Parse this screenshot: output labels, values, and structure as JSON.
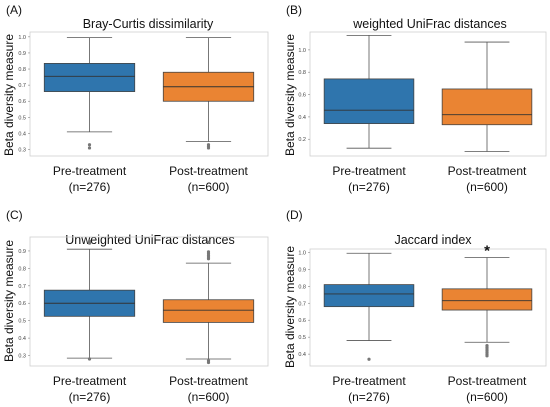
{
  "colors": {
    "pre": "#2f75ad",
    "post": "#ea8433"
  },
  "chart_data": [
    {
      "type": "boxplot",
      "panel": "(A)",
      "title": "Bray-Curtis dissimilarity",
      "ylabel": "Beta diversity measure",
      "xlabel": "",
      "ylim": [
        0.26,
        1.03
      ],
      "yticks": [
        "0.3",
        "0.4",
        "0.5",
        "0.6",
        "0.7",
        "0.8",
        "0.9",
        "1.0"
      ],
      "ytick_values": [
        0.3,
        0.4,
        0.5,
        0.6,
        0.7,
        0.8,
        0.9,
        1.0
      ],
      "significance": "",
      "categories": [
        {
          "line1": "Pre-treatment",
          "line2": "(n=276)"
        },
        {
          "line1": "Post-treatment",
          "line2": "(n=600)"
        }
      ],
      "series": [
        {
          "whisker_low": 0.41,
          "q1": 0.66,
          "median": 0.755,
          "q3": 0.835,
          "whisker_high": 0.995,
          "outliers": [
            0.33,
            0.31
          ]
        },
        {
          "whisker_low": 0.35,
          "q1": 0.6,
          "median": 0.69,
          "q3": 0.78,
          "whisker_high": 0.995,
          "outliers": [
            0.33,
            0.32,
            0.31
          ]
        }
      ]
    },
    {
      "type": "boxplot",
      "panel": "(B)",
      "title": "weighted UniFrac distances",
      "ylabel": "Beta diversity measure",
      "xlabel": "",
      "ylim": [
        0.05,
        1.16
      ],
      "yticks": [
        "0.2",
        "0.4",
        "0.6",
        "0.8",
        "1.0"
      ],
      "ytick_values": [
        0.2,
        0.4,
        0.6,
        0.8,
        1.0
      ],
      "significance": "",
      "categories": [
        {
          "line1": "Pre-treatment",
          "line2": "(n=276)"
        },
        {
          "line1": "Post-treatment",
          "line2": "(n=600)"
        }
      ],
      "series": [
        {
          "whisker_low": 0.12,
          "q1": 0.34,
          "median": 0.46,
          "q3": 0.74,
          "whisker_high": 1.13,
          "outliers": []
        },
        {
          "whisker_low": 0.09,
          "q1": 0.33,
          "median": 0.42,
          "q3": 0.65,
          "whisker_high": 1.07,
          "outliers": []
        }
      ]
    },
    {
      "type": "boxplot",
      "panel": "(C)",
      "title": "Unweighted UniFrac distances",
      "ylabel": "Beta diversity measure",
      "xlabel": "",
      "ylim": [
        0.24,
        0.98
      ],
      "yticks": [
        "0.3",
        "0.4",
        "0.5",
        "0.6",
        "0.7",
        "0.8",
        "0.9"
      ],
      "ytick_values": [
        0.3,
        0.4,
        0.5,
        0.6,
        0.7,
        0.8,
        0.9
      ],
      "significance": "",
      "categories": [
        {
          "line1": "Pre-treatment",
          "line2": "(n=276)"
        },
        {
          "line1": "Post-treatment",
          "line2": "(n=600)"
        }
      ],
      "series": [
        {
          "whisker_low": 0.285,
          "q1": 0.525,
          "median": 0.6,
          "q3": 0.675,
          "whisker_high": 0.91,
          "outliers": [
            0.955,
            0.945,
            0.28
          ]
        },
        {
          "whisker_low": 0.28,
          "q1": 0.49,
          "median": 0.56,
          "q3": 0.62,
          "whisker_high": 0.83,
          "outliers": [
            0.855,
            0.865,
            0.875,
            0.885,
            0.895,
            0.95,
            0.27,
            0.26
          ]
        }
      ]
    },
    {
      "type": "boxplot",
      "panel": "(D)",
      "title": "Jaccard index",
      "ylabel": "Beta diversity measure",
      "xlabel": "",
      "ylim": [
        0.33,
        1.02
      ],
      "yticks": [
        "0.4",
        "0.5",
        "0.6",
        "0.7",
        "0.8",
        "0.9",
        "1.0"
      ],
      "ytick_values": [
        0.4,
        0.5,
        0.6,
        0.7,
        0.8,
        0.9,
        1.0
      ],
      "significance": "*",
      "categories": [
        {
          "line1": "Pre-treatment",
          "line2": "(n=276)"
        },
        {
          "line1": "Post-treatment",
          "line2": "(n=600)"
        }
      ],
      "series": [
        {
          "whisker_low": 0.48,
          "q1": 0.68,
          "median": 0.755,
          "q3": 0.81,
          "whisker_high": 0.995,
          "outliers": [
            0.37
          ]
        },
        {
          "whisker_low": 0.47,
          "q1": 0.66,
          "median": 0.715,
          "q3": 0.785,
          "whisker_high": 0.97,
          "outliers": [
            0.45,
            0.44,
            0.43,
            0.42,
            0.41,
            0.4,
            0.39
          ]
        }
      ]
    }
  ]
}
